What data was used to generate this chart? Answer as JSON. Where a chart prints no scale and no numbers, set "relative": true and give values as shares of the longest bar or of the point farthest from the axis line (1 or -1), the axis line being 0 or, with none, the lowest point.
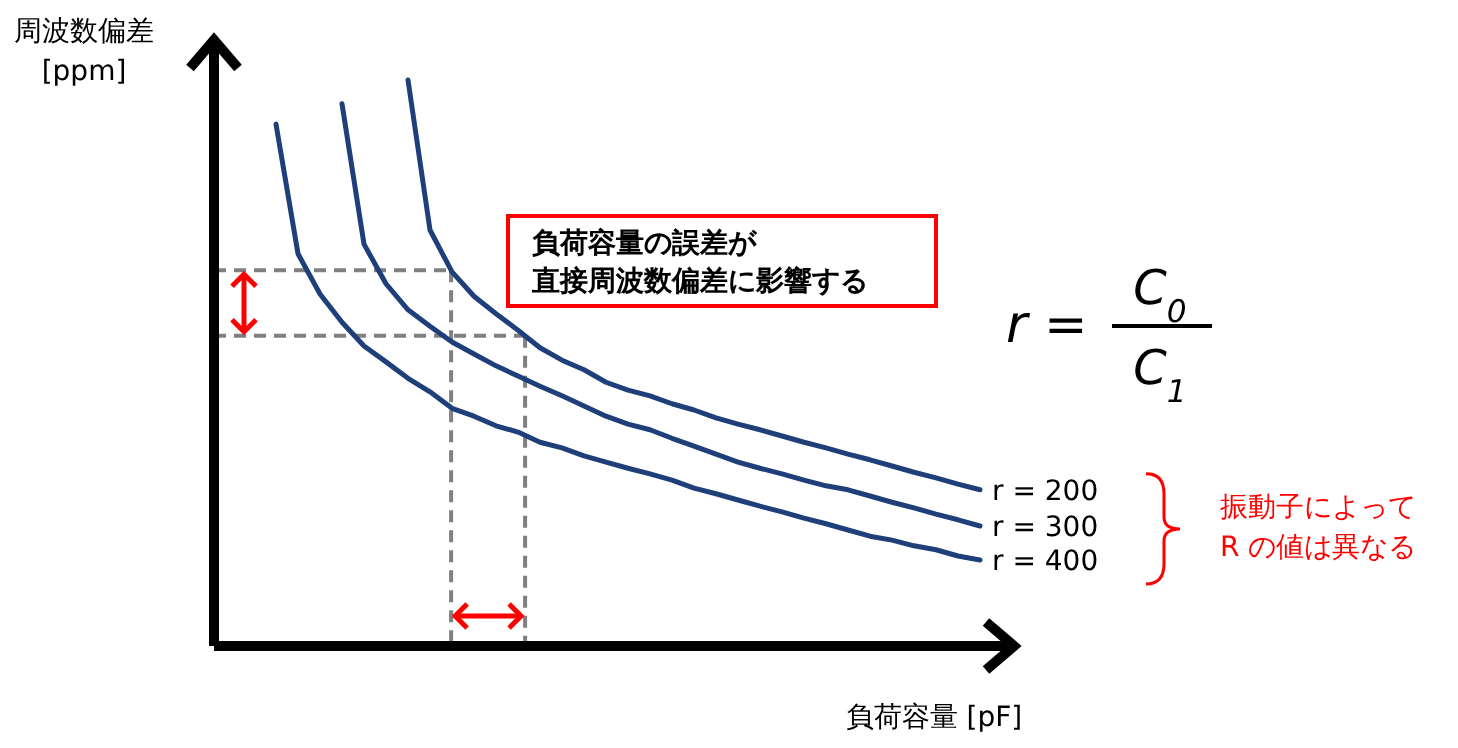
{
  "chart_data": {
    "type": "line",
    "relative": true,
    "xlabel": "負荷容量 [pF]",
    "ylabel": "周波数偏差\n[ppm]",
    "legend": false,
    "marker": "none",
    "line_style": "solid",
    "categories": [
      null,
      null,
      null,
      null,
      null,
      null,
      null,
      null,
      null,
      null,
      null,
      null,
      null,
      null,
      null,
      null,
      null,
      null,
      null,
      null,
      null,
      null,
      null,
      null,
      null,
      null,
      null,
      null,
      null,
      null,
      null,
      null,
      null
    ],
    "series": [
      {
        "name": "r = 200",
        "color": "#1f3f7a",
        "values": [
          null,
          null,
          null,
          null,
          null,
          null,
          1.0,
          0.735,
          0.661,
          0.618,
          0.587,
          0.558,
          0.527,
          0.505,
          0.488,
          0.466,
          0.452,
          0.442,
          0.428,
          0.417,
          0.403,
          0.392,
          0.382,
          0.371,
          0.36,
          0.35,
          0.339,
          0.329,
          0.318,
          0.307,
          0.297,
          0.286,
          0.276
        ]
      },
      {
        "name": "r = 300",
        "color": "#1f3f7a",
        "values": [
          null,
          null,
          null,
          0.958,
          0.71,
          0.64,
          0.594,
          0.565,
          0.537,
          0.516,
          0.495,
          0.477,
          0.459,
          0.442,
          0.424,
          0.406,
          0.392,
          0.382,
          0.367,
          0.353,
          0.339,
          0.325,
          0.314,
          0.304,
          0.293,
          0.283,
          0.276,
          0.265,
          0.254,
          0.244,
          0.233,
          0.223,
          0.212
        ]
      },
      {
        "name": "r = 400",
        "color": "#1f3f7a",
        "values": [
          0.922,
          0.693,
          0.622,
          0.572,
          0.53,
          0.502,
          0.473,
          0.449,
          0.42,
          0.406,
          0.389,
          0.378,
          0.36,
          0.35,
          0.336,
          0.325,
          0.314,
          0.304,
          0.293,
          0.279,
          0.269,
          0.258,
          0.247,
          0.237,
          0.226,
          0.216,
          0.205,
          0.194,
          0.187,
          0.177,
          0.17,
          0.159,
          0.152
        ]
      }
    ],
    "ref_lines": [
      {
        "axis": "y",
        "value": 0.664,
        "color": "#808080",
        "line_style": "dashed"
      },
      {
        "axis": "y",
        "value": 0.548,
        "color": "#808080",
        "line_style": "dashed"
      }
    ],
    "annotations": [
      "負荷容量の誤差が",
      "直接周波数偏差に影響する",
      "r =",
      "C$_{0}$",
      "C$_{1}$",
      "振動子によって",
      "R の値は異なる"
    ]
  }
}
